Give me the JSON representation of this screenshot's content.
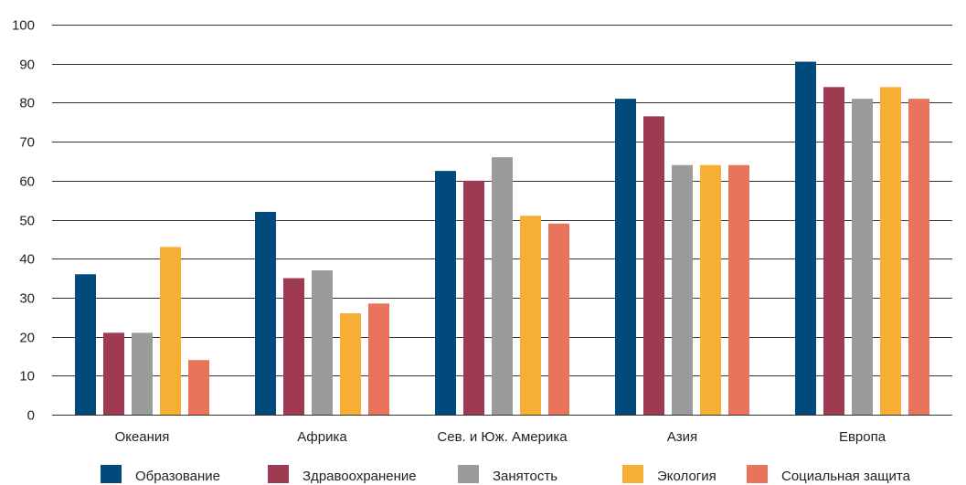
{
  "chart_data": {
    "type": "bar",
    "categories": [
      "Океания",
      "Африка",
      "Сев. и Юж. Америка",
      "Азия",
      "Европа"
    ],
    "series": [
      {
        "name": "Образование",
        "color": "#004B7C",
        "values": [
          36,
          52,
          62.5,
          81,
          90.5
        ]
      },
      {
        "name": "Здравоохранение",
        "color": "#9E3A52",
        "values": [
          21,
          35,
          60,
          76.5,
          84
        ]
      },
      {
        "name": "Занятость",
        "color": "#9B9B9B",
        "values": [
          21,
          37,
          66,
          64,
          81
        ]
      },
      {
        "name": "Экология",
        "color": "#F7AE34",
        "values": [
          43,
          26,
          51,
          64,
          84
        ]
      },
      {
        "name": "Социальная защита",
        "color": "#E8745B",
        "values": [
          14,
          28.5,
          49,
          64,
          81
        ]
      }
    ],
    "ylim": [
      0,
      100
    ],
    "yticks": [
      "0",
      "10",
      "20",
      "30",
      "40",
      "50",
      "60",
      "70",
      "80",
      "90",
      "100"
    ],
    "grid": true,
    "legend_position": "bottom"
  }
}
